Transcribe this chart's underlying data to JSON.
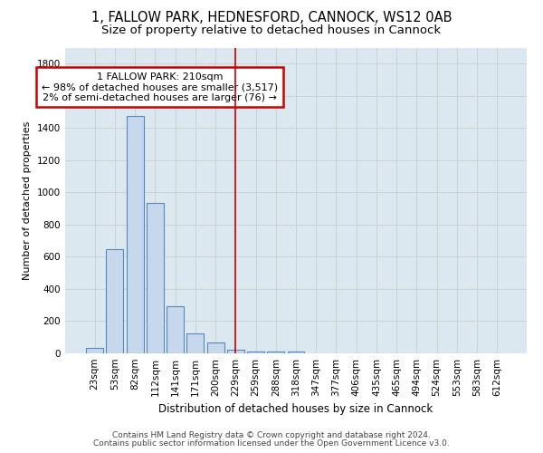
{
  "title1": "1, FALLOW PARK, HEDNESFORD, CANNOCK, WS12 0AB",
  "title2": "Size of property relative to detached houses in Cannock",
  "xlabel": "Distribution of detached houses by size in Cannock",
  "ylabel": "Number of detached properties",
  "categories": [
    "23sqm",
    "53sqm",
    "82sqm",
    "112sqm",
    "141sqm",
    "171sqm",
    "200sqm",
    "229sqm",
    "259sqm",
    "288sqm",
    "318sqm",
    "347sqm",
    "377sqm",
    "406sqm",
    "435sqm",
    "465sqm",
    "494sqm",
    "524sqm",
    "553sqm",
    "583sqm",
    "612sqm"
  ],
  "values": [
    35,
    650,
    1475,
    935,
    290,
    125,
    65,
    25,
    10,
    10,
    10,
    0,
    0,
    0,
    0,
    0,
    0,
    0,
    0,
    0,
    0
  ],
  "bar_color": "#c8d8ec",
  "bar_edge_color": "#5588bb",
  "vline_x": 7,
  "vline_color": "#cc0000",
  "annotation_line1": "1 FALLOW PARK: 210sqm",
  "annotation_line2": "← 98% of detached houses are smaller (3,517)",
  "annotation_line3": "2% of semi-detached houses are larger (76) →",
  "annotation_box_color": "#ffffff",
  "annotation_box_edge": "#cc0000",
  "ylim": [
    0,
    1900
  ],
  "yticks": [
    0,
    200,
    400,
    600,
    800,
    1000,
    1200,
    1400,
    1600,
    1800
  ],
  "grid_color": "#cccccc",
  "bg_color": "#dce8f0",
  "fig_color": "#ffffff",
  "footer1": "Contains HM Land Registry data © Crown copyright and database right 2024.",
  "footer2": "Contains public sector information licensed under the Open Government Licence v3.0.",
  "title1_fontsize": 10.5,
  "title2_fontsize": 9.5,
  "xlabel_fontsize": 8.5,
  "ylabel_fontsize": 8,
  "tick_fontsize": 7.5,
  "footer_fontsize": 6.5,
  "ann_fontsize": 8
}
